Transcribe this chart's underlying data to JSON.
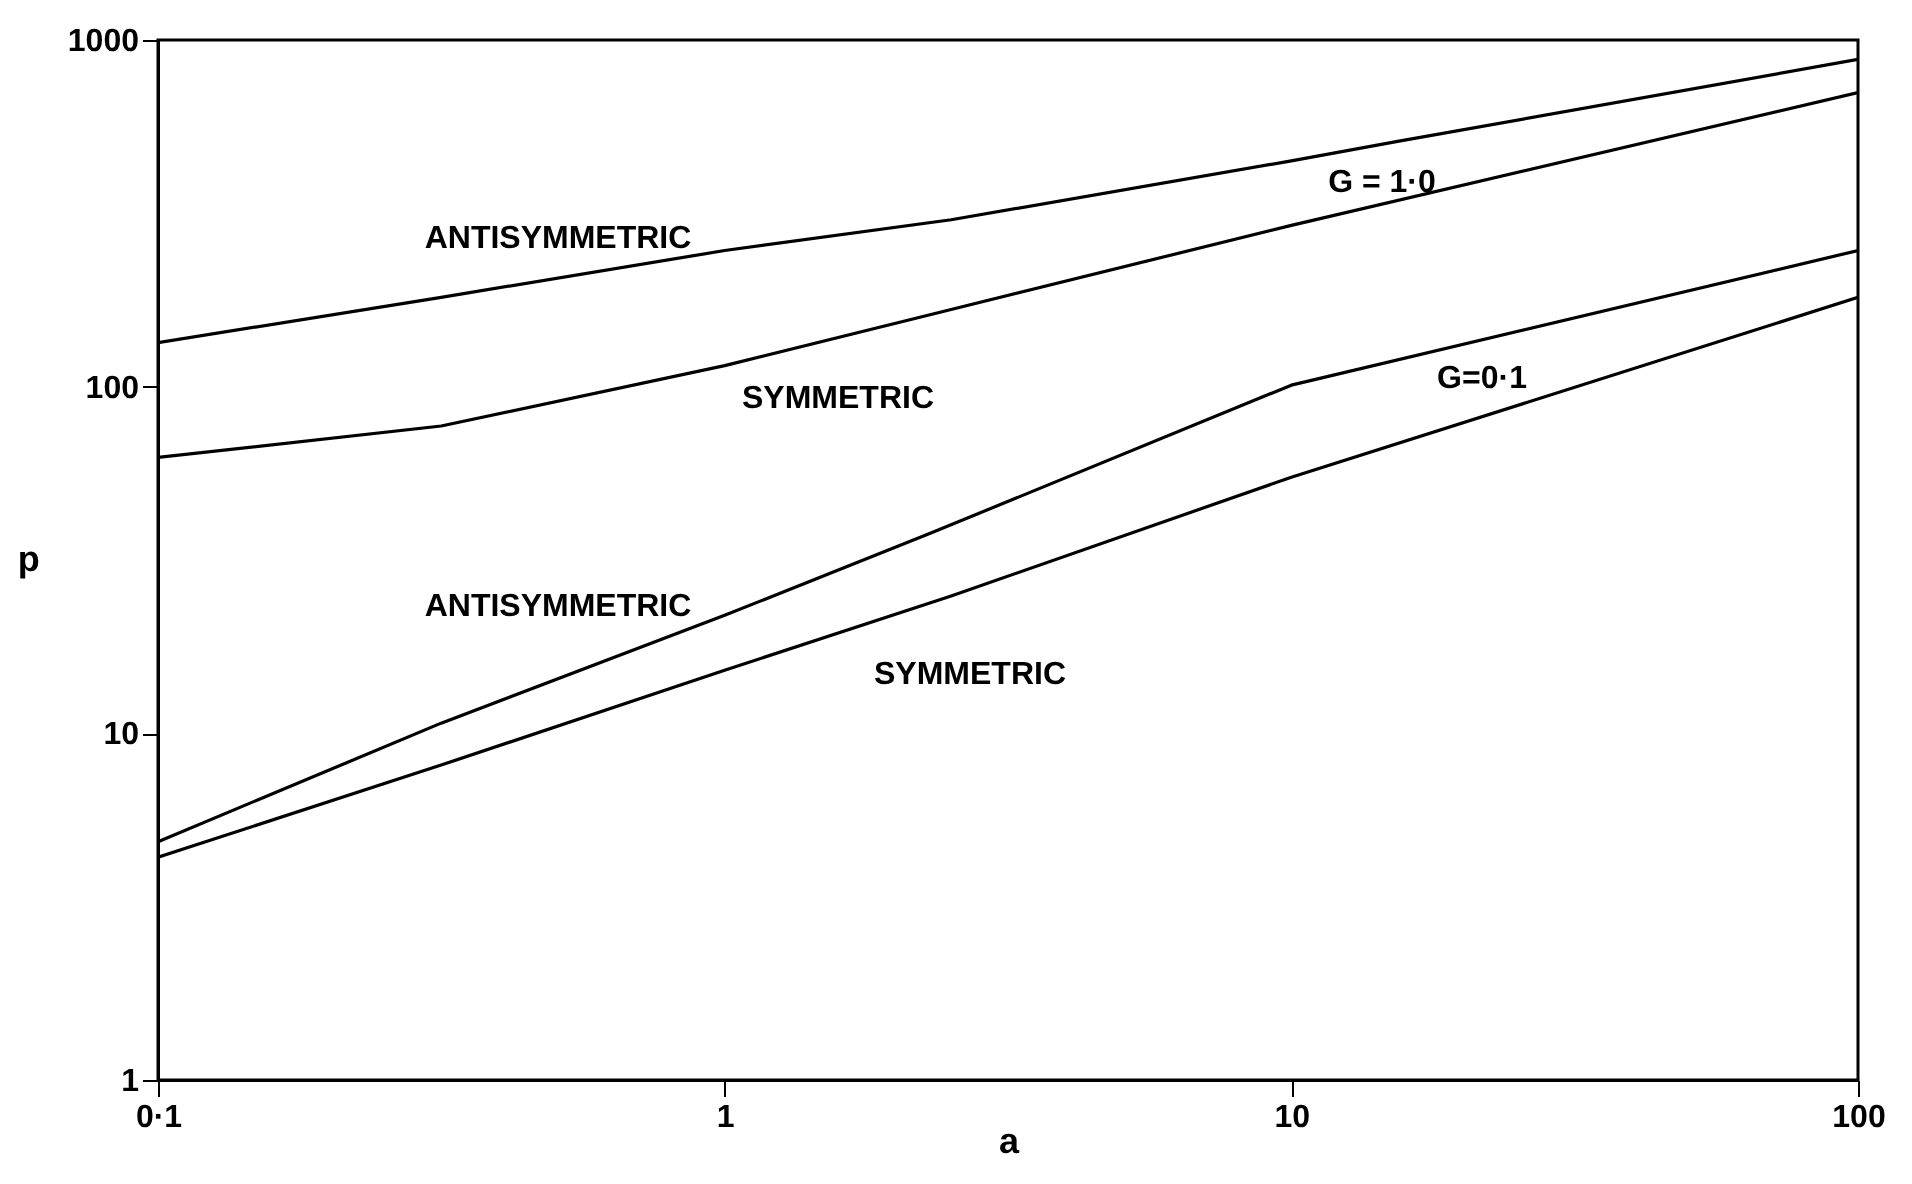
{
  "chart_data": {
    "type": "line",
    "xlabel": "a",
    "ylabel": "p",
    "log": "xy",
    "grid": false,
    "line_style": "solid",
    "xlim": [
      0.1,
      100
    ],
    "xticks": [
      {
        "value": 0.1,
        "label": "0·1"
      },
      1,
      10,
      100
    ],
    "ylim": [
      1,
      1000
    ],
    "yticks": [
      1,
      10,
      100,
      1000
    ],
    "series": [
      {
        "color": "#000000",
        "x": [
          0.1,
          0.316,
          1,
          2.51,
          10,
          15.4,
          100
        ],
        "values": [
          134,
          181,
          247,
          303,
          448,
          510,
          879
        ]
      },
      {
        "color": "#000000",
        "x": [
          0.1,
          0.316,
          1,
          2.51,
          10,
          100
        ],
        "values": [
          62.5,
          77,
          115,
          167,
          292,
          705
        ]
      },
      {
        "color": "#000000",
        "x": [
          0.1,
          0.316,
          1,
          2.3,
          10,
          100
        ],
        "values": [
          4.87,
          10.7,
          21.9,
          37.7,
          101,
          247
        ]
      },
      {
        "color": "#000000",
        "x": [
          0.1,
          0.316,
          1,
          2.51,
          10,
          100
        ],
        "values": [
          4.39,
          8.1,
          15.2,
          24.9,
          54.8,
          181
        ]
      }
    ],
    "annotations": [
      "ANTISYMMETRIC",
      "SYMMETRIC",
      "G = 1·0",
      "G=0·1",
      "ANTISYMMETRIC",
      "SYMMETRIC"
    ]
  }
}
